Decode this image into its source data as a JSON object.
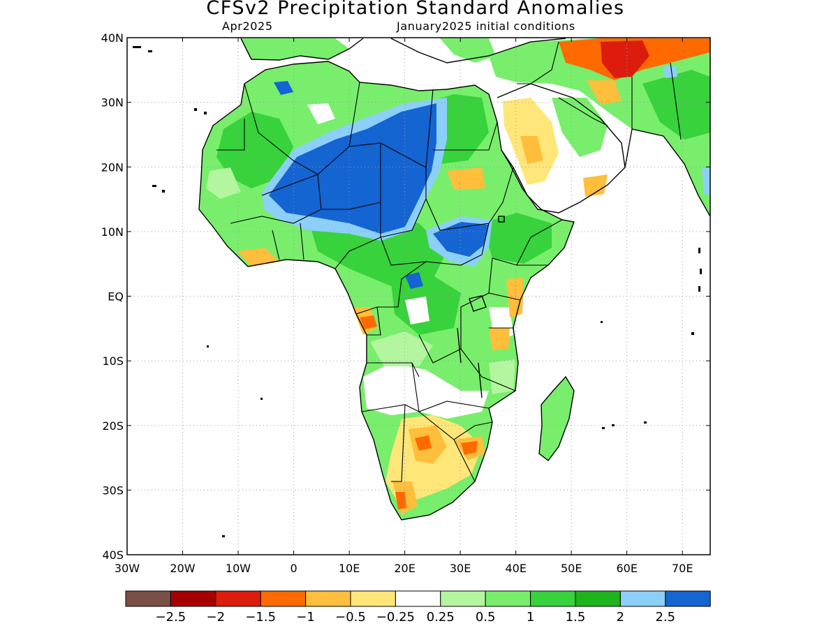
{
  "header": {
    "title": "CFSv2 Precipitation Standard Anomalies",
    "valid_month": "Apr2025",
    "initial_conditions": "January2025 initial conditions"
  },
  "map": {
    "lat_labels": [
      "40N",
      "30N",
      "20N",
      "10N",
      "EQ",
      "10S",
      "20S",
      "30S",
      "40S"
    ],
    "lon_labels": [
      "30W",
      "20W",
      "10W",
      "0",
      "10E",
      "20E",
      "30E",
      "40E",
      "50E",
      "60E",
      "70E"
    ],
    "lat_range": [
      -40,
      40
    ],
    "lon_range": [
      -30,
      75
    ],
    "grid": "dotted"
  },
  "legend": {
    "colors": [
      "#7a4f46",
      "#a50000",
      "#dc1d0d",
      "#ff6a00",
      "#ffbe3c",
      "#ffe678",
      "#ffffff",
      "#b4f5a0",
      "#78ee6c",
      "#37d23c",
      "#1eb41e",
      "#8ccff8",
      "#1464d2"
    ],
    "labels": [
      "-2.5",
      "-2",
      "-1.5",
      "-1",
      "-0.5",
      "-0.25",
      "0.25",
      "0.5",
      "1",
      "1.5",
      "2",
      "2.5"
    ]
  }
}
